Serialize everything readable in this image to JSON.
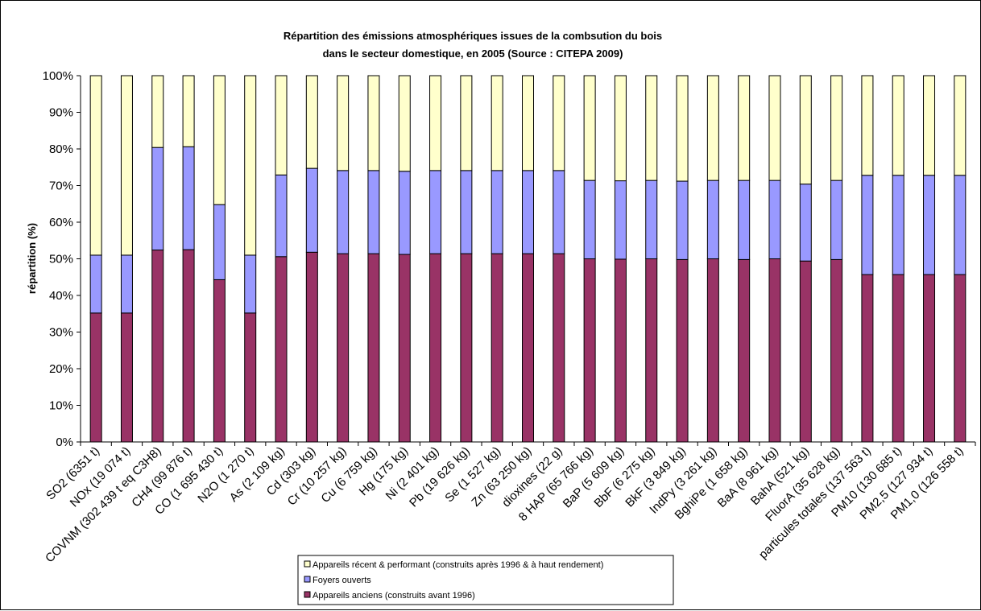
{
  "colors": {
    "anciens": "#993366",
    "foyers": "#9999ff",
    "recent": "#ffffcc",
    "stroke": "#000000",
    "background": "#ffffff"
  },
  "chart_data": {
    "type": "bar",
    "stacked": "percent",
    "title_lines": [
      "Répartition des émissions atmosphériques issues de la combsution du bois",
      "dans le secteur domestique, en 2005 (Source : CITEPA 2009)"
    ],
    "xlabel": "",
    "ylabel": "répartition (%)",
    "ylim": [
      0,
      100
    ],
    "y_ticks": [
      "0%",
      "10%",
      "20%",
      "30%",
      "40%",
      "50%",
      "60%",
      "70%",
      "80%",
      "90%",
      "100%"
    ],
    "grid": false,
    "legend_position": "bottom",
    "categories": [
      "SO2 (6351 t)",
      "NOx (19 074 t)",
      "COVNM (302 439 t eq C3H8)",
      "CH4 (99 876 t)",
      "CO (1 695 430 t)",
      "N2O (1 270 t)",
      "As (2 109 kg)",
      "Cd (303 kg)",
      "Cr (10 257 kg)",
      "Cu (6 759 kg)",
      "Hg (175 kg)",
      "Ni (2 401 kg)",
      "Pb (19 626 kg)",
      "Se (1 527 kg)",
      "Zn (63 250 kg)",
      "dioxines (22 g)",
      "8 HAP (65 766 kg)",
      "BaP (5 609 kg)",
      "BbF (6 275 kg)",
      "BkF (3 849 kg)",
      "IndPy (3 261 kg)",
      "BghiPe (1 658 kg)",
      "BaA (8 961 kg)",
      "BahA (521 kg)",
      "FluorA (35 628 kg)",
      "particules totales (137 563 t)",
      "PM10 (130 685 t)",
      "PM2,5 (127 934 t)",
      "PM1,0 (126 558 t)"
    ],
    "series": [
      {
        "name": "Appareils anciens (construits avant 1996)",
        "values": [
          35.2,
          35.2,
          52.4,
          52.5,
          44.3,
          35.2,
          50.6,
          51.8,
          51.4,
          51.4,
          51.2,
          51.4,
          51.4,
          51.4,
          51.4,
          51.4,
          50.0,
          49.9,
          50.0,
          49.8,
          50.0,
          49.8,
          50.0,
          49.4,
          49.8,
          45.7,
          45.7,
          45.7,
          45.7
        ]
      },
      {
        "name": "Foyers ouverts",
        "values": [
          15.8,
          15.8,
          28.0,
          28.1,
          20.5,
          15.8,
          22.3,
          22.9,
          22.7,
          22.7,
          22.7,
          22.7,
          22.7,
          22.7,
          22.7,
          22.7,
          21.4,
          21.4,
          21.4,
          21.4,
          21.4,
          21.6,
          21.4,
          21.0,
          21.6,
          27.1,
          27.1,
          27.1,
          27.1
        ]
      },
      {
        "name": "Appareils récent & performant (construits après 1996 & à haut rendement)",
        "values": [
          49.0,
          49.0,
          19.6,
          19.4,
          35.2,
          49.0,
          27.1,
          25.3,
          25.9,
          25.9,
          26.1,
          25.9,
          25.9,
          25.9,
          25.9,
          25.9,
          28.6,
          28.7,
          28.6,
          28.8,
          28.6,
          28.6,
          28.6,
          29.6,
          28.6,
          27.2,
          27.2,
          27.2,
          27.2
        ]
      }
    ]
  }
}
